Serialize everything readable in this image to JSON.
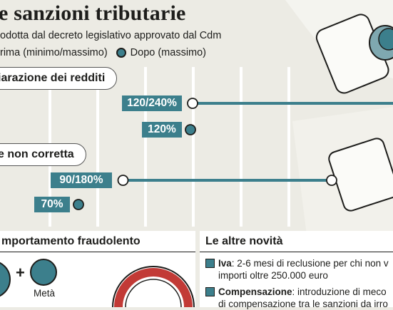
{
  "title": "e sanzioni tributarie",
  "subtitle": "odotta dal decreto legislativo approvato dal Cdm",
  "legend": {
    "before": "rima (minimo/massimo)",
    "after": "Dopo (massimo)"
  },
  "colors": {
    "teal": "#3c7f8c",
    "background": "#ecebe4",
    "line": "#1d1d1b",
    "grid": "#ffffff"
  },
  "chart_data": {
    "type": "bar",
    "categories": [
      "iarazione dei redditi",
      "e non corretta"
    ],
    "series": [
      {
        "name": "rima (minimo/massimo)",
        "labels": [
          "120/240%",
          "90/180%"
        ],
        "values": [
          [
            120,
            240
          ],
          [
            90,
            180
          ]
        ]
      },
      {
        "name": "Dopo (massimo)",
        "labels": [
          "120%",
          "70%"
        ],
        "values": [
          120,
          70
        ]
      }
    ],
    "grid": true
  },
  "panels": {
    "fraud_title": "mportamento fraudolento",
    "plus": "+",
    "meta_label": "Metà",
    "novita_title": "Le altre novità",
    "novita_items": [
      {
        "bold": "Iva",
        "line1": ": 2-6 mesi di reclusione per chi non v",
        "line2": "importi oltre 250.000 euro"
      },
      {
        "bold": "Compensazione",
        "line1": ": introduzione di meco",
        "line2": "di compensazione tra le sanzioni da irro"
      }
    ]
  }
}
